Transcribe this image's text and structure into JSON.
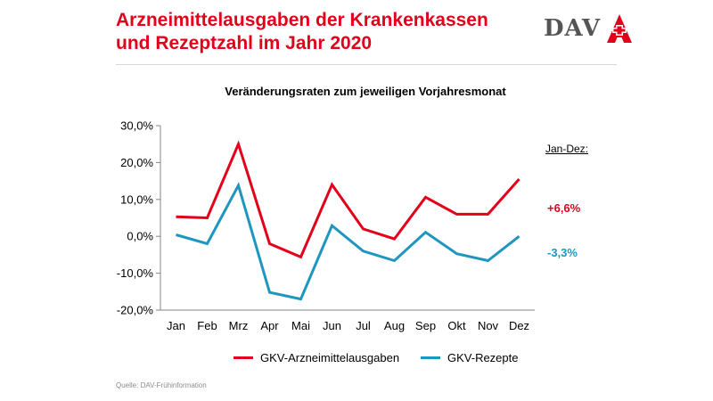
{
  "header": {
    "title_line1": "Arzneimittelausgaben der Krankenkassen",
    "title_line2": "und Rezeptzahl im Jahr 2020",
    "logo_text": "DAV",
    "accent_color": "#e2001a"
  },
  "side": {
    "header": "Jan-Dez:",
    "values": [
      "+6,6%",
      "-3,3%"
    ],
    "colors": [
      "#e2001a",
      "#1f96c0"
    ]
  },
  "footer": {
    "source": "Quelle: DAV-Frühinformation"
  },
  "chart_data": {
    "type": "line",
    "title": "Veränderungsraten zum jeweiligen  Vorjahresmonat",
    "categories": [
      "Jan",
      "Feb",
      "Mrz",
      "Apr",
      "Mai",
      "Jun",
      "Jul",
      "Aug",
      "Sep",
      "Okt",
      "Nov",
      "Dez"
    ],
    "ylim": [
      -20,
      30
    ],
    "yticks": [
      30,
      20,
      10,
      0,
      -10,
      -20
    ],
    "ytick_labels": [
      "30,0%",
      "20,0%",
      "10,0%",
      "0,0%",
      "-10,0%",
      "-20,0%"
    ],
    "grid": false,
    "legend_position": "bottom",
    "series": [
      {
        "name": "GKV-Arzneimittelausgaben",
        "color": "#e2001a",
        "values": [
          5.3,
          5.0,
          25.0,
          -2.0,
          -5.6,
          14.0,
          2.0,
          -0.7,
          10.6,
          6.0,
          6.0,
          15.5
        ]
      },
      {
        "name": "GKV-Rezepte",
        "color": "#1f96c0",
        "values": [
          0.4,
          -2.0,
          13.8,
          -15.2,
          -17.0,
          2.9,
          -4.0,
          -6.6,
          1.1,
          -4.7,
          -6.6,
          0.0
        ]
      }
    ]
  }
}
